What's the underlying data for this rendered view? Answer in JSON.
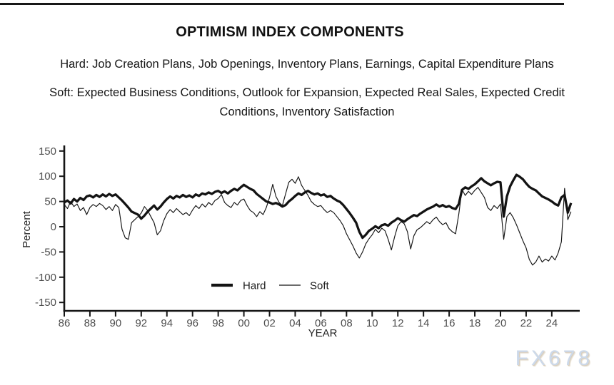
{
  "page": {
    "watermark": "FX678"
  },
  "header": {
    "hard_line": "Hard: Job Creation Plans, Job Openings, Inventory Plans, Earnings, Capital Expenditure Plans",
    "soft_line": "Soft: Expected Business Conditions, Outlook for Expansion, Expected Real Sales, Expected Credit Conditions, Inventory Satisfaction"
  },
  "chart_data": {
    "type": "line",
    "title": "OPTIMISM INDEX COMPONENTS",
    "xlabel": "YEAR",
    "ylabel": "Percent",
    "ylim": [
      -150,
      150
    ],
    "yticks": [
      150,
      100,
      50,
      0,
      -50,
      -100,
      -150
    ],
    "xtick_years": [
      1986,
      1988,
      1990,
      1992,
      1994,
      1996,
      1998,
      2000,
      2002,
      2004,
      2006,
      2008,
      2010,
      2012,
      2014,
      2016,
      2018,
      2020,
      2022,
      2024
    ],
    "xtick_labels": [
      "86",
      "88",
      "90",
      "92",
      "94",
      "96",
      "98",
      "00",
      "02",
      "04",
      "06",
      "08",
      "10",
      "12",
      "14",
      "16",
      "18",
      "20",
      "22",
      "24"
    ],
    "x_start": 1986.0,
    "x_step": 0.25,
    "grid": false,
    "legend_position": "inside-bottom-center",
    "legend": [
      {
        "name": "Hard",
        "style": "thick"
      },
      {
        "name": "Soft",
        "style": "thin"
      }
    ],
    "colors": {
      "line": "#131313",
      "tick_label": "#4f4f4f",
      "axis_label": "#262626",
      "axis": "#161616"
    },
    "series": [
      {
        "name": "Hard",
        "stroke_width": 3.3,
        "values": [
          48,
          52,
          46,
          55,
          50,
          57,
          53,
          60,
          62,
          58,
          63,
          59,
          64,
          60,
          65,
          61,
          64,
          58,
          52,
          45,
          38,
          30,
          27,
          24,
          16,
          22,
          30,
          36,
          42,
          34,
          40,
          48,
          55,
          60,
          56,
          61,
          58,
          63,
          59,
          62,
          58,
          64,
          61,
          66,
          64,
          68,
          65,
          69,
          71,
          67,
          70,
          66,
          71,
          75,
          72,
          78,
          83,
          79,
          75,
          72,
          65,
          60,
          55,
          50,
          48,
          45,
          47,
          44,
          40,
          43,
          50,
          55,
          61,
          66,
          63,
          68,
          71,
          67,
          64,
          66,
          62,
          64,
          59,
          61,
          56,
          52,
          49,
          43,
          35,
          27,
          18,
          8,
          -10,
          -22,
          -16,
          -8,
          -4,
          1,
          -3,
          3,
          5,
          2,
          8,
          12,
          17,
          13,
          10,
          15,
          19,
          23,
          21,
          26,
          30,
          34,
          37,
          40,
          44,
          40,
          43,
          39,
          41,
          37,
          35,
          45,
          73,
          78,
          75,
          80,
          84,
          90,
          96,
          90,
          86,
          82,
          86,
          89,
          88,
          20,
          60,
          80,
          92,
          103,
          99,
          94,
          86,
          79,
          75,
          72,
          66,
          60,
          57,
          54,
          50,
          45,
          42,
          58,
          63,
          28,
          47
        ]
      },
      {
        "name": "Soft",
        "stroke_width": 1.15,
        "values": [
          44,
          36,
          50,
          40,
          45,
          32,
          38,
          24,
          38,
          44,
          40,
          46,
          42,
          34,
          40,
          32,
          44,
          38,
          -5,
          -22,
          -25,
          8,
          14,
          20,
          27,
          40,
          32,
          20,
          8,
          -16,
          -8,
          12,
          26,
          34,
          28,
          36,
          30,
          24,
          28,
          22,
          33,
          42,
          36,
          45,
          39,
          48,
          43,
          52,
          56,
          64,
          48,
          42,
          38,
          48,
          43,
          52,
          55,
          42,
          32,
          28,
          20,
          30,
          24,
          38,
          58,
          84,
          60,
          48,
          42,
          65,
          88,
          94,
          86,
          99,
          82,
          72,
          62,
          50,
          44,
          40,
          42,
          34,
          28,
          32,
          28,
          20,
          12,
          2,
          -14,
          -26,
          -38,
          -52,
          -62,
          -50,
          -34,
          -24,
          -16,
          -5,
          -12,
          -3,
          -8,
          -25,
          -46,
          -20,
          2,
          10,
          6,
          -10,
          -44,
          -18,
          -6,
          -2,
          4,
          10,
          6,
          14,
          19,
          10,
          4,
          8,
          -4,
          -10,
          -14,
          25,
          74,
          62,
          70,
          64,
          72,
          78,
          68,
          58,
          38,
          32,
          42,
          36,
          45,
          -25,
          20,
          28,
          18,
          4,
          -12,
          -28,
          -42,
          -65,
          -76,
          -70,
          -58,
          -70,
          -64,
          -68,
          -58,
          -66,
          -52,
          -30,
          76,
          14,
          30
        ]
      }
    ]
  }
}
